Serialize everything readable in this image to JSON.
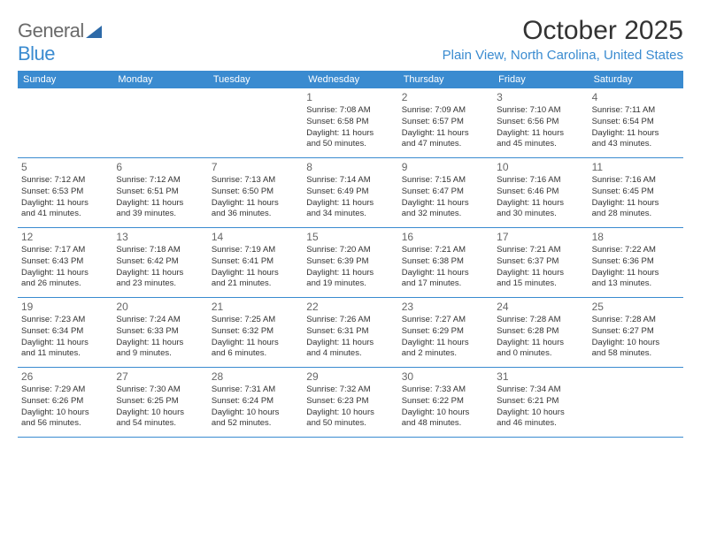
{
  "logo": {
    "part1": "General",
    "part2": "Blue"
  },
  "title": "October 2025",
  "location": "Plain View, North Carolina, United States",
  "colors": {
    "header_bg": "#3a8bd0",
    "header_text": "#ffffff",
    "border": "#3a8bd0",
    "daynum": "#666666",
    "body_text": "#333333",
    "logo_gray": "#6a6a6a",
    "logo_blue": "#3a8bd0"
  },
  "weekdays": [
    "Sunday",
    "Monday",
    "Tuesday",
    "Wednesday",
    "Thursday",
    "Friday",
    "Saturday"
  ],
  "weeks": [
    [
      null,
      null,
      null,
      {
        "n": "1",
        "sr": "Sunrise: 7:08 AM",
        "ss": "Sunset: 6:58 PM",
        "d1": "Daylight: 11 hours",
        "d2": "and 50 minutes."
      },
      {
        "n": "2",
        "sr": "Sunrise: 7:09 AM",
        "ss": "Sunset: 6:57 PM",
        "d1": "Daylight: 11 hours",
        "d2": "and 47 minutes."
      },
      {
        "n": "3",
        "sr": "Sunrise: 7:10 AM",
        "ss": "Sunset: 6:56 PM",
        "d1": "Daylight: 11 hours",
        "d2": "and 45 minutes."
      },
      {
        "n": "4",
        "sr": "Sunrise: 7:11 AM",
        "ss": "Sunset: 6:54 PM",
        "d1": "Daylight: 11 hours",
        "d2": "and 43 minutes."
      }
    ],
    [
      {
        "n": "5",
        "sr": "Sunrise: 7:12 AM",
        "ss": "Sunset: 6:53 PM",
        "d1": "Daylight: 11 hours",
        "d2": "and 41 minutes."
      },
      {
        "n": "6",
        "sr": "Sunrise: 7:12 AM",
        "ss": "Sunset: 6:51 PM",
        "d1": "Daylight: 11 hours",
        "d2": "and 39 minutes."
      },
      {
        "n": "7",
        "sr": "Sunrise: 7:13 AM",
        "ss": "Sunset: 6:50 PM",
        "d1": "Daylight: 11 hours",
        "d2": "and 36 minutes."
      },
      {
        "n": "8",
        "sr": "Sunrise: 7:14 AM",
        "ss": "Sunset: 6:49 PM",
        "d1": "Daylight: 11 hours",
        "d2": "and 34 minutes."
      },
      {
        "n": "9",
        "sr": "Sunrise: 7:15 AM",
        "ss": "Sunset: 6:47 PM",
        "d1": "Daylight: 11 hours",
        "d2": "and 32 minutes."
      },
      {
        "n": "10",
        "sr": "Sunrise: 7:16 AM",
        "ss": "Sunset: 6:46 PM",
        "d1": "Daylight: 11 hours",
        "d2": "and 30 minutes."
      },
      {
        "n": "11",
        "sr": "Sunrise: 7:16 AM",
        "ss": "Sunset: 6:45 PM",
        "d1": "Daylight: 11 hours",
        "d2": "and 28 minutes."
      }
    ],
    [
      {
        "n": "12",
        "sr": "Sunrise: 7:17 AM",
        "ss": "Sunset: 6:43 PM",
        "d1": "Daylight: 11 hours",
        "d2": "and 26 minutes."
      },
      {
        "n": "13",
        "sr": "Sunrise: 7:18 AM",
        "ss": "Sunset: 6:42 PM",
        "d1": "Daylight: 11 hours",
        "d2": "and 23 minutes."
      },
      {
        "n": "14",
        "sr": "Sunrise: 7:19 AM",
        "ss": "Sunset: 6:41 PM",
        "d1": "Daylight: 11 hours",
        "d2": "and 21 minutes."
      },
      {
        "n": "15",
        "sr": "Sunrise: 7:20 AM",
        "ss": "Sunset: 6:39 PM",
        "d1": "Daylight: 11 hours",
        "d2": "and 19 minutes."
      },
      {
        "n": "16",
        "sr": "Sunrise: 7:21 AM",
        "ss": "Sunset: 6:38 PM",
        "d1": "Daylight: 11 hours",
        "d2": "and 17 minutes."
      },
      {
        "n": "17",
        "sr": "Sunrise: 7:21 AM",
        "ss": "Sunset: 6:37 PM",
        "d1": "Daylight: 11 hours",
        "d2": "and 15 minutes."
      },
      {
        "n": "18",
        "sr": "Sunrise: 7:22 AM",
        "ss": "Sunset: 6:36 PM",
        "d1": "Daylight: 11 hours",
        "d2": "and 13 minutes."
      }
    ],
    [
      {
        "n": "19",
        "sr": "Sunrise: 7:23 AM",
        "ss": "Sunset: 6:34 PM",
        "d1": "Daylight: 11 hours",
        "d2": "and 11 minutes."
      },
      {
        "n": "20",
        "sr": "Sunrise: 7:24 AM",
        "ss": "Sunset: 6:33 PM",
        "d1": "Daylight: 11 hours",
        "d2": "and 9 minutes."
      },
      {
        "n": "21",
        "sr": "Sunrise: 7:25 AM",
        "ss": "Sunset: 6:32 PM",
        "d1": "Daylight: 11 hours",
        "d2": "and 6 minutes."
      },
      {
        "n": "22",
        "sr": "Sunrise: 7:26 AM",
        "ss": "Sunset: 6:31 PM",
        "d1": "Daylight: 11 hours",
        "d2": "and 4 minutes."
      },
      {
        "n": "23",
        "sr": "Sunrise: 7:27 AM",
        "ss": "Sunset: 6:29 PM",
        "d1": "Daylight: 11 hours",
        "d2": "and 2 minutes."
      },
      {
        "n": "24",
        "sr": "Sunrise: 7:28 AM",
        "ss": "Sunset: 6:28 PM",
        "d1": "Daylight: 11 hours",
        "d2": "and 0 minutes."
      },
      {
        "n": "25",
        "sr": "Sunrise: 7:28 AM",
        "ss": "Sunset: 6:27 PM",
        "d1": "Daylight: 10 hours",
        "d2": "and 58 minutes."
      }
    ],
    [
      {
        "n": "26",
        "sr": "Sunrise: 7:29 AM",
        "ss": "Sunset: 6:26 PM",
        "d1": "Daylight: 10 hours",
        "d2": "and 56 minutes."
      },
      {
        "n": "27",
        "sr": "Sunrise: 7:30 AM",
        "ss": "Sunset: 6:25 PM",
        "d1": "Daylight: 10 hours",
        "d2": "and 54 minutes."
      },
      {
        "n": "28",
        "sr": "Sunrise: 7:31 AM",
        "ss": "Sunset: 6:24 PM",
        "d1": "Daylight: 10 hours",
        "d2": "and 52 minutes."
      },
      {
        "n": "29",
        "sr": "Sunrise: 7:32 AM",
        "ss": "Sunset: 6:23 PM",
        "d1": "Daylight: 10 hours",
        "d2": "and 50 minutes."
      },
      {
        "n": "30",
        "sr": "Sunrise: 7:33 AM",
        "ss": "Sunset: 6:22 PM",
        "d1": "Daylight: 10 hours",
        "d2": "and 48 minutes."
      },
      {
        "n": "31",
        "sr": "Sunrise: 7:34 AM",
        "ss": "Sunset: 6:21 PM",
        "d1": "Daylight: 10 hours",
        "d2": "and 46 minutes."
      },
      null
    ]
  ]
}
